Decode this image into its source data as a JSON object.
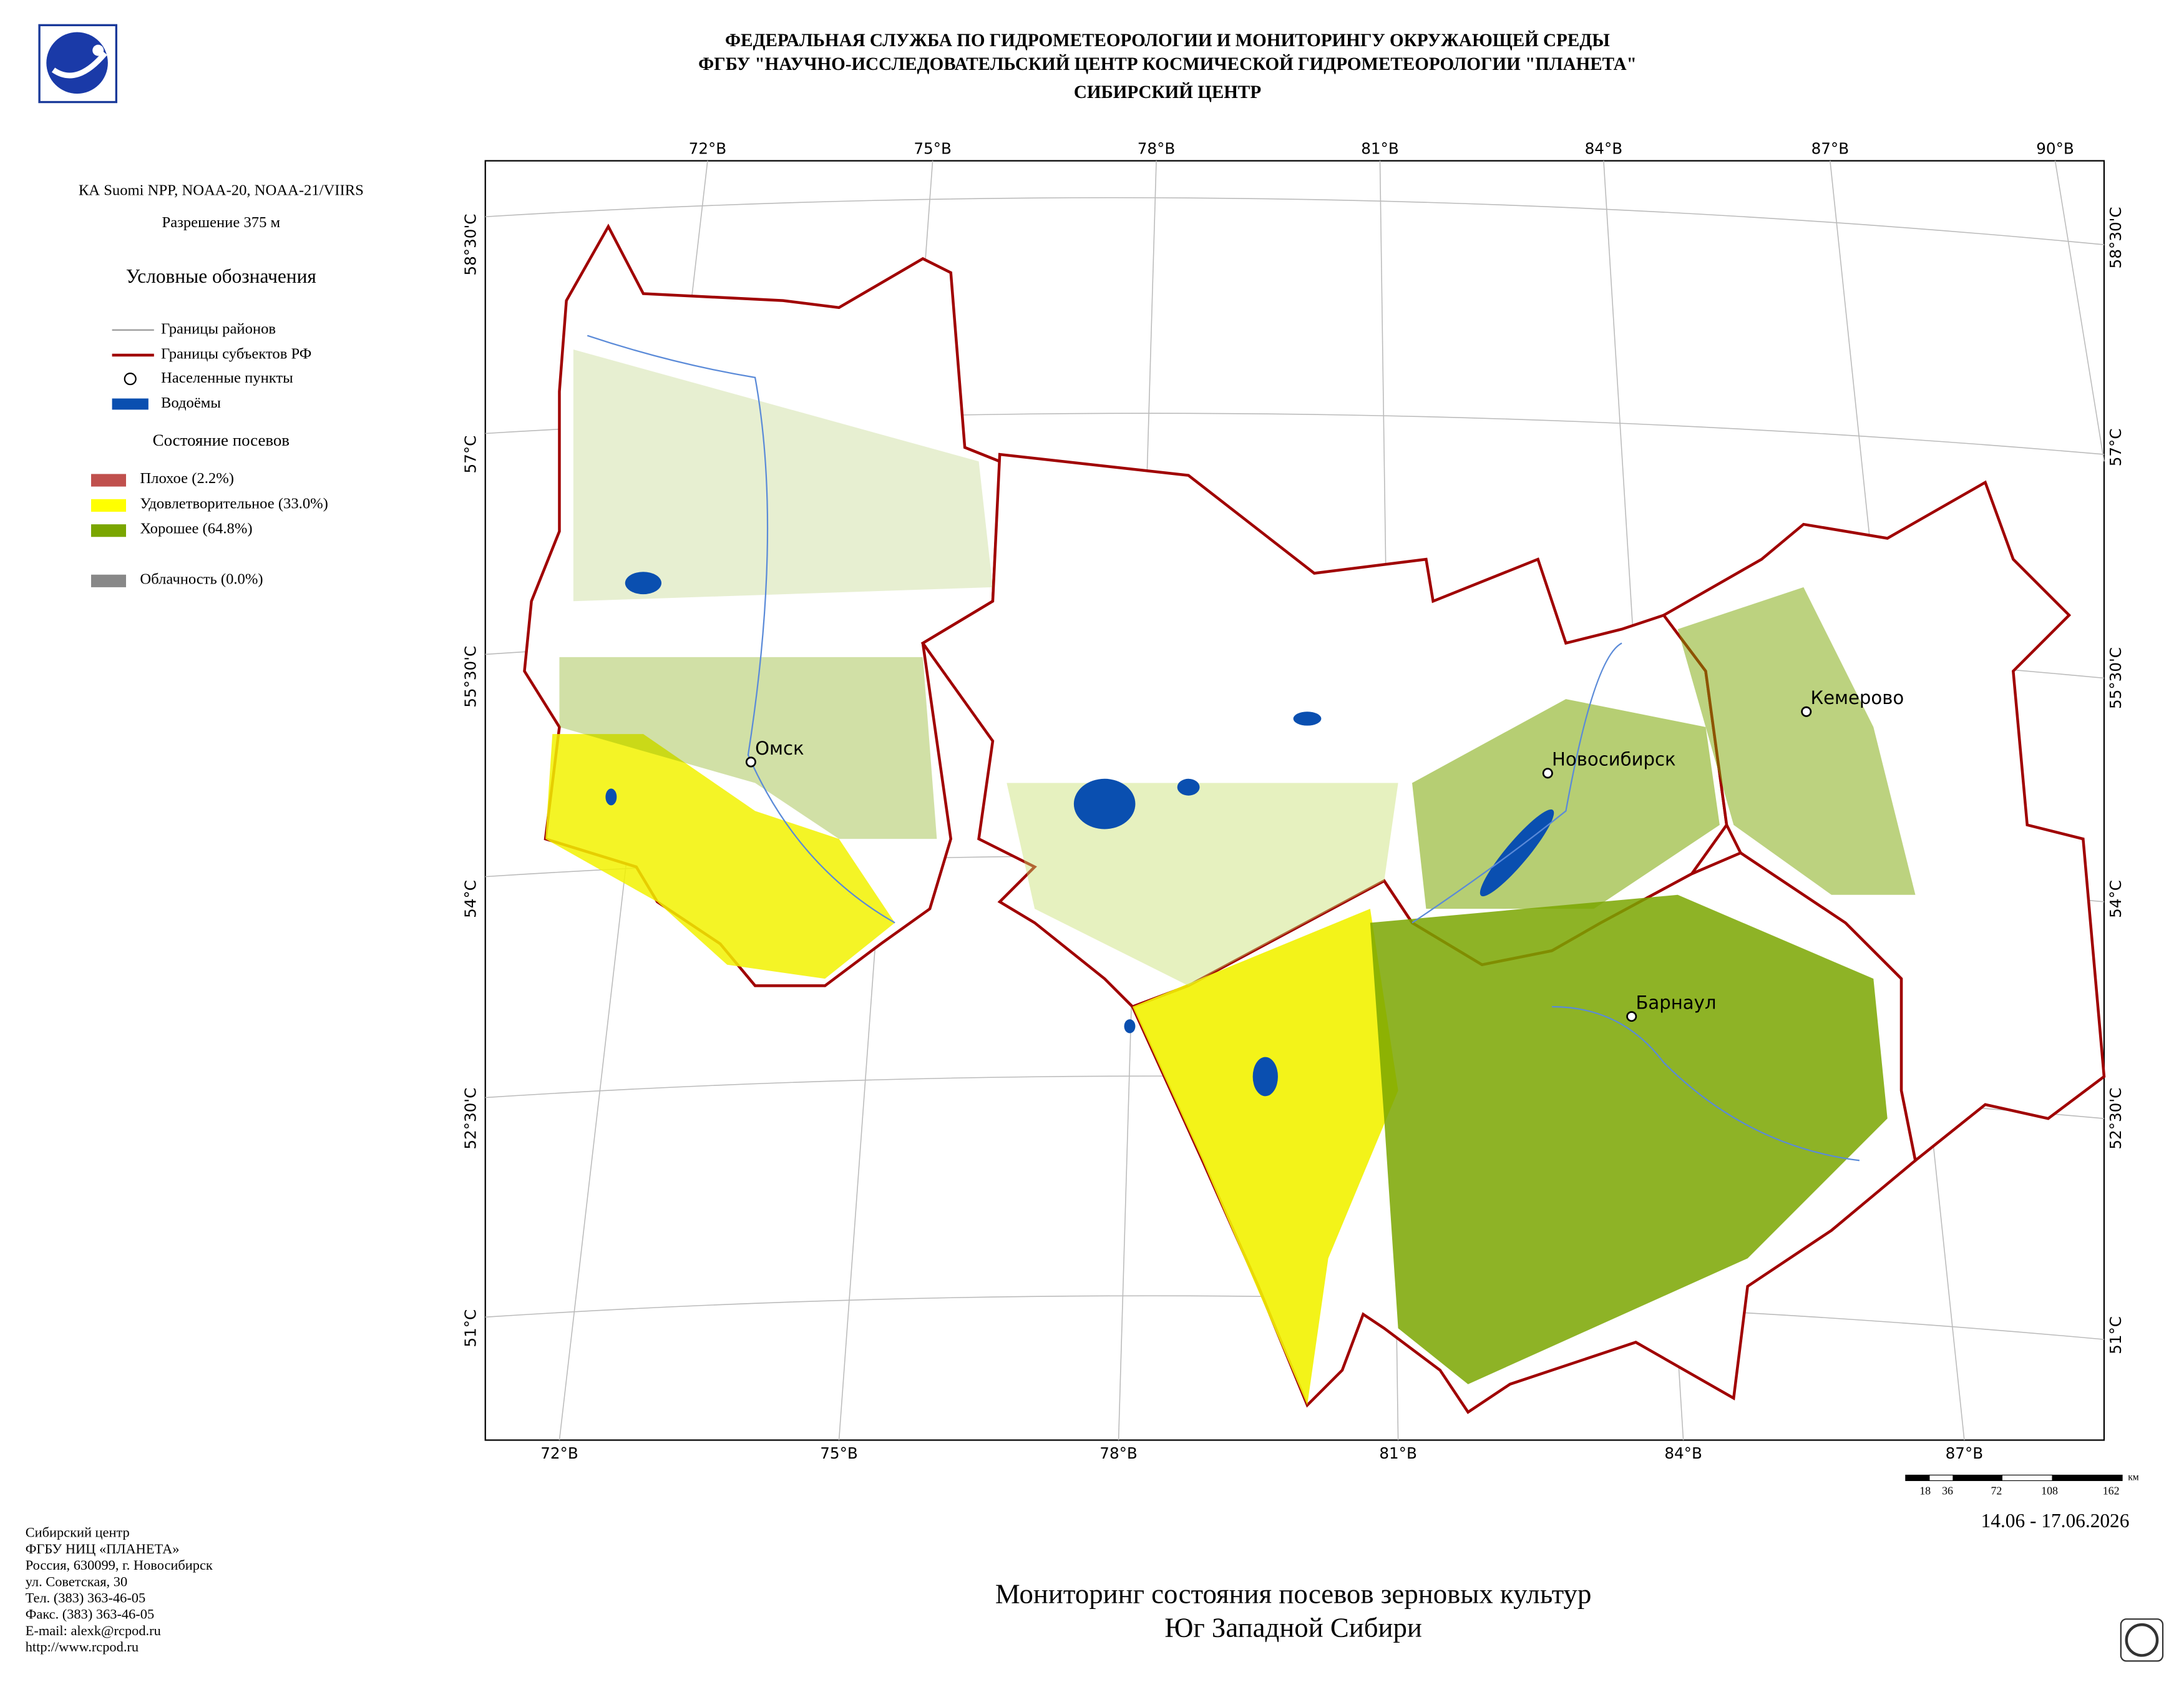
{
  "header": {
    "lines": [
      "ФЕДЕРАЛЬНАЯ СЛУЖБА ПО ГИДРОМЕТЕОРОЛОГИИ И МОНИТОРИНГУ ОКРУЖАЮЩЕЙ СРЕДЫ",
      "ФГБУ \"НАУЧНО-ИССЛЕДОВАТЕЛЬСКИЙ ЦЕНТР КОСМИЧЕСКОЙ ГИДРОМЕТЕОРОЛОГИИ \"ПЛАНЕТА\"",
      "СИБИРСКИЙ ЦЕНТР"
    ]
  },
  "sensor": "КА Suomi NPP, NOAA-20, NOAA-21/VIIRS",
  "resolution": "Разрешение 375 м",
  "legend": {
    "title": "Условные обозначения",
    "items": [
      "Границы районов",
      "Границы субъектов РФ",
      "Населенные пункты",
      "Водоёмы"
    ],
    "crops_title": "Состояние посевов",
    "crops": [
      "Плохое (2.2%)",
      "Удовлетворительное (33.0%)",
      "Хорошее (64.8%)"
    ],
    "cloud": "Облачность (0.0%)"
  },
  "map": {
    "top_ticks": [
      "72°В",
      "75°В",
      "78°В",
      "81°В",
      "84°В",
      "87°В",
      "90°В"
    ],
    "bottom_ticks": [
      "72°В",
      "75°В",
      "78°В",
      "81°В",
      "84°В",
      "87°В"
    ],
    "left_ticks": [
      "58°30'С",
      "57°С",
      "55°30'С",
      "54°С",
      "52°30'С",
      "51°С"
    ],
    "right_ticks": [
      "58°30'С",
      "57°С",
      "55°30'С",
      "54°С",
      "52°30'С",
      "51°С"
    ],
    "cities": [
      "Омск",
      "Новосибирск",
      "Кемерово",
      "Барнаул"
    ]
  },
  "scale": {
    "labels": [
      "18",
      "36",
      "72",
      "108",
      "162"
    ],
    "unit": "км"
  },
  "date": "14.06 - 17.06.2026",
  "title": [
    "Мониторинг состояния посевов зерновых культур",
    "Юг Западной Сибири"
  ],
  "contacts": [
    "Сибирский центр",
    "ФГБУ НИЦ «ПЛАНЕТА»",
    "Россия, 630099, г. Новосибирск",
    "ул. Советская, 30",
    "Тел. (383) 363-46-05",
    "Факс. (383) 363-46-05",
    "E-mail: alexk@rcpod.ru",
    "http://www.rcpod.ru"
  ]
}
